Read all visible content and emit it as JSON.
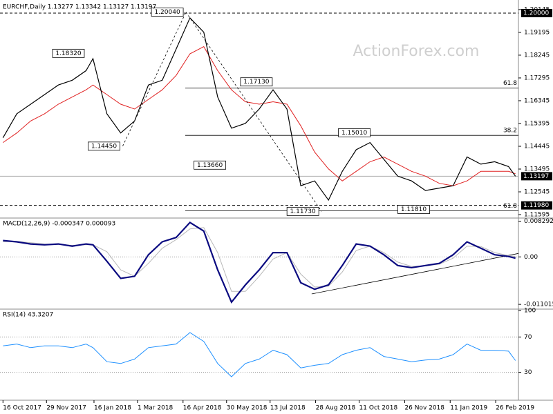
{
  "chart_data": [
    {
      "type": "line",
      "title": "EURCHF,Daily  1.13277 1.13342 1.13127 1.13197",
      "watermark": "ActionForex.com",
      "xlim": [
        "2017-10-13",
        "2019-03-21"
      ],
      "x": [
        "2017-10-16",
        "2017-10-30",
        "2017-11-13",
        "2017-11-27",
        "2017-12-11",
        "2017-12-25",
        "2018-01-08",
        "2018-01-15",
        "2018-01-29",
        "2018-02-12",
        "2018-02-26",
        "2018-03-12",
        "2018-03-26",
        "2018-04-09",
        "2018-04-23",
        "2018-05-07",
        "2018-05-21",
        "2018-06-04",
        "2018-06-18",
        "2018-07-02",
        "2018-07-16",
        "2018-07-30",
        "2018-08-13",
        "2018-08-27",
        "2018-09-10",
        "2018-09-24",
        "2018-10-08",
        "2018-10-22",
        "2018-11-05",
        "2018-11-19",
        "2018-12-03",
        "2018-12-17",
        "2018-12-31",
        "2019-01-14",
        "2019-01-28",
        "2019-02-11",
        "2019-02-25",
        "2019-03-11",
        "2019-03-18"
      ],
      "series": [
        {
          "name": "EURCHF",
          "color": "#000000",
          "values": [
            1.148,
            1.158,
            1.162,
            1.166,
            1.17,
            1.172,
            1.176,
            1.181,
            1.158,
            1.15,
            1.155,
            1.17,
            1.172,
            1.185,
            1.198,
            1.192,
            1.165,
            1.152,
            1.154,
            1.16,
            1.168,
            1.16,
            1.128,
            1.13,
            1.122,
            1.134,
            1.143,
            1.146,
            1.139,
            1.132,
            1.13,
            1.126,
            1.127,
            1.128,
            1.14,
            1.137,
            1.138,
            1.136,
            1.13197
          ]
        },
        {
          "name": "MA",
          "color": "#e02020",
          "values": [
            1.146,
            1.15,
            1.155,
            1.158,
            1.162,
            1.165,
            1.168,
            1.17,
            1.166,
            1.162,
            1.16,
            1.164,
            1.168,
            1.174,
            1.183,
            1.186,
            1.176,
            1.168,
            1.163,
            1.162,
            1.163,
            1.162,
            1.153,
            1.142,
            1.135,
            1.13,
            1.134,
            1.138,
            1.14,
            1.137,
            1.134,
            1.132,
            1.129,
            1.128,
            1.13,
            1.134,
            1.134,
            1.134,
            1.133
          ]
        }
      ],
      "ylim": [
        1.1151,
        1.2043
      ],
      "yticks": [
        1.20145,
        1.19195,
        1.18245,
        1.17295,
        1.16345,
        1.15395,
        1.14445,
        1.13495,
        1.12545,
        1.11595
      ],
      "price_lines": [
        {
          "value": 1.2,
          "label": "1.20000",
          "style": "dashed"
        },
        {
          "value": 1.13197,
          "label": "1.13197",
          "style": "solid"
        },
        {
          "value": 1.1198,
          "label": "1.11980",
          "style": "dashed"
        }
      ],
      "fib_levels": [
        {
          "value": 1.1687,
          "label": "61.8"
        },
        {
          "value": 1.149,
          "label": "38.2"
        },
        {
          "value": 1.1175,
          "label": "61.8"
        }
      ],
      "annotations": [
        {
          "date": "2018-04-19",
          "value": 1.2004,
          "label": "1.20040"
        },
        {
          "date": "2018-01-09",
          "value": 1.1832,
          "label": "1.18320"
        },
        {
          "date": "2018-02-14",
          "value": 1.1445,
          "label": "1.14450"
        },
        {
          "date": "2018-06-01",
          "value": 1.1366,
          "label": "1.13660"
        },
        {
          "date": "2018-07-18",
          "value": 1.1713,
          "label": "1.17130"
        },
        {
          "date": "2018-10-25",
          "value": 1.1501,
          "label": "1.15010"
        },
        {
          "date": "2018-09-03",
          "value": 1.1173,
          "label": "1.11730"
        },
        {
          "date": "2018-12-24",
          "value": 1.1181,
          "label": "1.11810"
        }
      ]
    },
    {
      "type": "line",
      "title": "MACD(12,26,9) -0.000347 0.000093",
      "xlim": [
        "2017-10-13",
        "2019-03-21"
      ],
      "x": [
        "2017-10-16",
        "2017-10-30",
        "2017-11-13",
        "2017-11-27",
        "2017-12-11",
        "2017-12-25",
        "2018-01-08",
        "2018-01-15",
        "2018-01-29",
        "2018-02-12",
        "2018-02-26",
        "2018-03-12",
        "2018-03-26",
        "2018-04-09",
        "2018-04-23",
        "2018-05-07",
        "2018-05-21",
        "2018-06-04",
        "2018-06-18",
        "2018-07-02",
        "2018-07-16",
        "2018-07-30",
        "2018-08-13",
        "2018-08-27",
        "2018-09-10",
        "2018-09-24",
        "2018-10-08",
        "2018-10-22",
        "2018-11-05",
        "2018-11-19",
        "2018-12-03",
        "2018-12-17",
        "2018-12-31",
        "2019-01-14",
        "2019-01-28",
        "2019-02-11",
        "2019-02-25",
        "2019-03-11",
        "2019-03-18"
      ],
      "series": [
        {
          "name": "MACD",
          "color": "#0a0a80",
          "values": [
            0.0038,
            0.0035,
            0.003,
            0.0028,
            0.003,
            0.0025,
            0.003,
            0.0028,
            -0.001,
            -0.005,
            -0.0045,
            0.0005,
            0.0035,
            0.0045,
            0.008,
            0.006,
            -0.003,
            -0.0105,
            -0.0065,
            -0.003,
            0.001,
            0.001,
            -0.006,
            -0.0075,
            -0.0065,
            -0.002,
            0.003,
            0.0025,
            0.0005,
            -0.002,
            -0.0025,
            -0.002,
            -0.0015,
            0.0005,
            0.0035,
            0.002,
            0.0005,
            0.0001,
            -0.0003
          ]
        },
        {
          "name": "Signal",
          "color": "#b8b8b8",
          "values": [
            0.0035,
            0.0036,
            0.0033,
            0.003,
            0.0029,
            0.0027,
            0.0028,
            0.0028,
            0.0012,
            -0.003,
            -0.0045,
            -0.0015,
            0.002,
            0.004,
            0.0065,
            0.0068,
            0.001,
            -0.008,
            -0.008,
            -0.0045,
            -0.0005,
            0.001,
            -0.004,
            -0.007,
            -0.0068,
            -0.0035,
            0.0015,
            0.0025,
            0.001,
            -0.0012,
            -0.0022,
            -0.0021,
            -0.0017,
            -0.0003,
            0.0025,
            0.0024,
            0.001,
            0.0003,
            0.0001
          ]
        }
      ],
      "trendline": {
        "x": [
          "2018-08-24",
          "2019-03-21"
        ],
        "values": [
          -0.0086,
          0.0008
        ]
      },
      "ylim": [
        -0.0118,
        0.0087
      ],
      "yticks": [
        0.008292,
        {
          "value": 0,
          "label": "0.00"
        },
        -0.011015
      ]
    },
    {
      "type": "line",
      "title": "RSI(14) 43.3207",
      "xlim": [
        "2017-10-13",
        "2019-03-21"
      ],
      "x": [
        "2017-10-16",
        "2017-10-30",
        "2017-11-13",
        "2017-11-27",
        "2017-12-11",
        "2017-12-25",
        "2018-01-08",
        "2018-01-15",
        "2018-01-29",
        "2018-02-12",
        "2018-02-26",
        "2018-03-12",
        "2018-03-26",
        "2018-04-09",
        "2018-04-23",
        "2018-05-07",
        "2018-05-21",
        "2018-06-04",
        "2018-06-18",
        "2018-07-02",
        "2018-07-16",
        "2018-07-30",
        "2018-08-13",
        "2018-08-27",
        "2018-09-10",
        "2018-09-24",
        "2018-10-08",
        "2018-10-22",
        "2018-11-05",
        "2018-11-19",
        "2018-12-03",
        "2018-12-17",
        "2018-12-31",
        "2019-01-14",
        "2019-01-28",
        "2019-02-11",
        "2019-02-25",
        "2019-03-11",
        "2019-03-18"
      ],
      "series": [
        {
          "name": "RSI",
          "color": "#1e90ff",
          "values": [
            60,
            62,
            58,
            60,
            60,
            58,
            62,
            58,
            42,
            40,
            45,
            58,
            60,
            62,
            75,
            65,
            40,
            25,
            40,
            45,
            55,
            50,
            35,
            38,
            40,
            50,
            55,
            58,
            48,
            45,
            42,
            44,
            45,
            50,
            62,
            55,
            55,
            54,
            43.3207
          ]
        }
      ],
      "ylim": [
        0,
        100
      ],
      "yticks": [
        100,
        70,
        30
      ],
      "grid_levels": [
        70,
        30
      ],
      "xticks": [
        {
          "value": "2017-10-16",
          "label": "16 Oct 2017"
        },
        {
          "value": "2017-11-29",
          "label": "29 Nov 2017"
        },
        {
          "value": "2018-01-16",
          "label": "16 Jan 2018"
        },
        {
          "value": "2018-03-01",
          "label": "1 Mar 2018"
        },
        {
          "value": "2018-04-16",
          "label": "16 Apr 2018"
        },
        {
          "value": "2018-05-30",
          "label": "30 May 2018"
        },
        {
          "value": "2018-07-13",
          "label": "13 Jul 2018"
        },
        {
          "value": "2018-08-28",
          "label": "28 Aug 2018"
        },
        {
          "value": "2018-10-11",
          "label": "11 Oct 2018"
        },
        {
          "value": "2018-11-26",
          "label": "26 Nov 2018"
        },
        {
          "value": "2019-01-11",
          "label": "11 Jan 2019"
        },
        {
          "value": "2019-02-26",
          "label": "26 Feb 2019"
        }
      ]
    }
  ]
}
